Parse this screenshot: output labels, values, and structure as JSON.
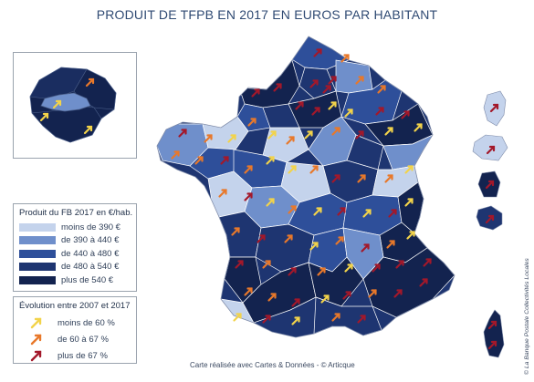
{
  "title": "PRODUIT DE TFPB EN 2017 EN EUROS PAR HABITANT",
  "legend_fb": {
    "title": "Produit du FB 2017 en €/hab.",
    "classes": [
      {
        "label": "moins de  390 €",
        "color": "#c4d3ec"
      },
      {
        "label": "de 390 à 440 €",
        "color": "#6f8fcb"
      },
      {
        "label": "de 440 à 480 €",
        "color": "#2e4f9a"
      },
      {
        "label": "de 480 à 540 €",
        "color": "#1e3571"
      },
      {
        "label": "plus de 540 €",
        "color": "#13234f"
      }
    ]
  },
  "legend_evol": {
    "title": "Évolution entre 2007 et 2017",
    "classes": [
      {
        "label": "moins de 60 %",
        "color": "#f2d34a"
      },
      {
        "label": "de 60 à 67 %",
        "color": "#e8782a"
      },
      {
        "label": "plus de 67 %",
        "color": "#a3182a"
      }
    ]
  },
  "credit": "Carte réalisée avec Cartes & Données - © Articque",
  "copyright": "© La Banque Postale Collectivités Locales"
}
